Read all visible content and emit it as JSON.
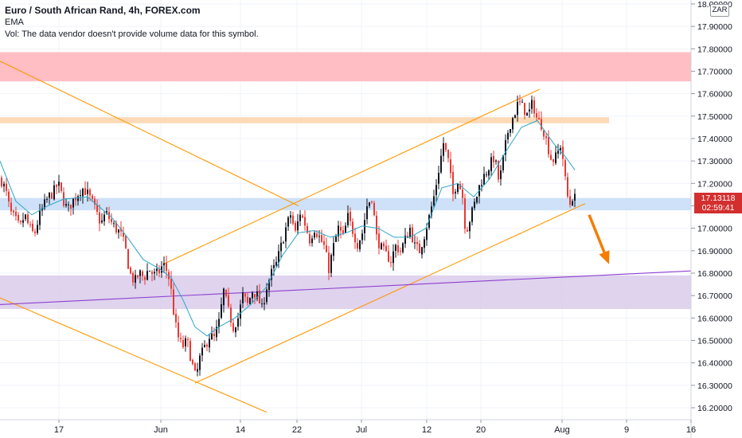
{
  "header": {
    "title": "Euro / South African Rand, 4h, FOREX.com",
    "indicator": "EMA",
    "volume_note": "Vol: The data vendor doesn't provide volume data for this symbol."
  },
  "price_axis": {
    "currency": "ZAR",
    "current_price": "17.13118",
    "countdown": "02:59:41"
  },
  "colors": {
    "up_candle": "#131722",
    "down_candle": "#e53935",
    "ema": "#2aa7c9",
    "trendline": "#ff9800",
    "support_line": "#8e3fcf",
    "forecast_arrow": "#f57c00",
    "zone_red": "#ffb3b8",
    "zone_orange": "#fcd3aa",
    "zone_blue": "#c5dcf7",
    "zone_purple": "#d9cbeb",
    "price_tag": "#d32f2f"
  },
  "chart_data": {
    "type": "candlestick",
    "symbol": "EURZAR",
    "timeframe": "4h",
    "ylim": [
      16.15,
      18.0
    ],
    "x_ticks": [
      "17",
      "Jun",
      "14",
      "22",
      "Jul",
      "12",
      "20",
      "Aug",
      "9",
      "16"
    ],
    "y_ticks": [
      "16.20000",
      "16.30000",
      "16.40000",
      "16.50000",
      "16.60000",
      "16.70000",
      "16.80000",
      "16.90000",
      "17.00000",
      "17.10000",
      "17.20000",
      "17.30000",
      "17.40000",
      "17.50000",
      "17.60000",
      "17.70000",
      "17.80000",
      "17.90000",
      "18.00000"
    ],
    "price_path": [
      {
        "x": 0,
        "y": 17.22
      },
      {
        "x": 6,
        "y": 17.17
      },
      {
        "x": 12,
        "y": 17.07
      },
      {
        "x": 18,
        "y": 17.04
      },
      {
        "x": 24,
        "y": 17.0
      },
      {
        "x": 30,
        "y": 17.06
      },
      {
        "x": 36,
        "y": 17.0
      },
      {
        "x": 42,
        "y": 16.97
      },
      {
        "x": 48,
        "y": 17.05
      },
      {
        "x": 54,
        "y": 17.1
      },
      {
        "x": 60,
        "y": 17.14
      },
      {
        "x": 66,
        "y": 17.16
      },
      {
        "x": 72,
        "y": 17.2
      },
      {
        "x": 78,
        "y": 17.13
      },
      {
        "x": 84,
        "y": 17.08
      },
      {
        "x": 90,
        "y": 17.12
      },
      {
        "x": 96,
        "y": 17.15
      },
      {
        "x": 102,
        "y": 17.18
      },
      {
        "x": 108,
        "y": 17.16
      },
      {
        "x": 114,
        "y": 17.12
      },
      {
        "x": 120,
        "y": 17.07
      },
      {
        "x": 126,
        "y": 17.02
      },
      {
        "x": 132,
        "y": 17.07
      },
      {
        "x": 138,
        "y": 17.03
      },
      {
        "x": 144,
        "y": 17.0
      },
      {
        "x": 150,
        "y": 16.98
      },
      {
        "x": 156,
        "y": 16.92
      },
      {
        "x": 162,
        "y": 16.8
      },
      {
        "x": 168,
        "y": 16.76
      },
      {
        "x": 174,
        "y": 16.8
      },
      {
        "x": 180,
        "y": 16.78
      },
      {
        "x": 186,
        "y": 16.82
      },
      {
        "x": 192,
        "y": 16.79
      },
      {
        "x": 198,
        "y": 16.8
      },
      {
        "x": 204,
        "y": 16.84
      },
      {
        "x": 210,
        "y": 16.8
      },
      {
        "x": 214,
        "y": 16.72
      },
      {
        "x": 218,
        "y": 16.6
      },
      {
        "x": 222,
        "y": 16.52
      },
      {
        "x": 228,
        "y": 16.47
      },
      {
        "x": 234,
        "y": 16.5
      },
      {
        "x": 240,
        "y": 16.4
      },
      {
        "x": 245,
        "y": 16.33
      },
      {
        "x": 250,
        "y": 16.42
      },
      {
        "x": 256,
        "y": 16.47
      },
      {
        "x": 262,
        "y": 16.52
      },
      {
        "x": 268,
        "y": 16.51
      },
      {
        "x": 274,
        "y": 16.58
      },
      {
        "x": 280,
        "y": 16.72
      },
      {
        "x": 286,
        "y": 16.63
      },
      {
        "x": 292,
        "y": 16.56
      },
      {
        "x": 298,
        "y": 16.6
      },
      {
        "x": 304,
        "y": 16.7
      },
      {
        "x": 310,
        "y": 16.66
      },
      {
        "x": 316,
        "y": 16.72
      },
      {
        "x": 322,
        "y": 16.7
      },
      {
        "x": 328,
        "y": 16.64
      },
      {
        "x": 334,
        "y": 16.74
      },
      {
        "x": 340,
        "y": 16.8
      },
      {
        "x": 346,
        "y": 16.84
      },
      {
        "x": 352,
        "y": 16.92
      },
      {
        "x": 358,
        "y": 17.0
      },
      {
        "x": 364,
        "y": 17.06
      },
      {
        "x": 370,
        "y": 16.98
      },
      {
        "x": 376,
        "y": 17.07
      },
      {
        "x": 382,
        "y": 17.02
      },
      {
        "x": 388,
        "y": 16.95
      },
      {
        "x": 394,
        "y": 17.0
      },
      {
        "x": 400,
        "y": 16.96
      },
      {
        "x": 406,
        "y": 16.92
      },
      {
        "x": 412,
        "y": 16.82
      },
      {
        "x": 418,
        "y": 16.92
      },
      {
        "x": 424,
        "y": 17.0
      },
      {
        "x": 430,
        "y": 16.96
      },
      {
        "x": 436,
        "y": 17.05
      },
      {
        "x": 442,
        "y": 16.99
      },
      {
        "x": 448,
        "y": 16.93
      },
      {
        "x": 454,
        "y": 16.98
      },
      {
        "x": 460,
        "y": 17.1
      },
      {
        "x": 466,
        "y": 17.14
      },
      {
        "x": 472,
        "y": 16.96
      },
      {
        "x": 478,
        "y": 16.91
      },
      {
        "x": 484,
        "y": 16.88
      },
      {
        "x": 490,
        "y": 16.86
      },
      {
        "x": 496,
        "y": 16.92
      },
      {
        "x": 502,
        "y": 16.9
      },
      {
        "x": 508,
        "y": 16.95
      },
      {
        "x": 514,
        "y": 17.0
      },
      {
        "x": 520,
        "y": 16.92
      },
      {
        "x": 526,
        "y": 16.9
      },
      {
        "x": 532,
        "y": 16.97
      },
      {
        "x": 538,
        "y": 17.05
      },
      {
        "x": 544,
        "y": 17.14
      },
      {
        "x": 550,
        "y": 17.26
      },
      {
        "x": 556,
        "y": 17.38
      },
      {
        "x": 562,
        "y": 17.3
      },
      {
        "x": 568,
        "y": 17.15
      },
      {
        "x": 574,
        "y": 17.22
      },
      {
        "x": 580,
        "y": 17.14
      },
      {
        "x": 584,
        "y": 16.98
      },
      {
        "x": 590,
        "y": 17.05
      },
      {
        "x": 596,
        "y": 17.12
      },
      {
        "x": 602,
        "y": 17.2
      },
      {
        "x": 608,
        "y": 17.24
      },
      {
        "x": 614,
        "y": 17.28
      },
      {
        "x": 620,
        "y": 17.32
      },
      {
        "x": 626,
        "y": 17.2
      },
      {
        "x": 632,
        "y": 17.33
      },
      {
        "x": 638,
        "y": 17.45
      },
      {
        "x": 644,
        "y": 17.5
      },
      {
        "x": 650,
        "y": 17.56
      },
      {
        "x": 656,
        "y": 17.54
      },
      {
        "x": 662,
        "y": 17.5
      },
      {
        "x": 668,
        "y": 17.56
      },
      {
        "x": 674,
        "y": 17.48
      },
      {
        "x": 680,
        "y": 17.46
      },
      {
        "x": 686,
        "y": 17.38
      },
      {
        "x": 692,
        "y": 17.3
      },
      {
        "x": 698,
        "y": 17.32
      },
      {
        "x": 704,
        "y": 17.38
      },
      {
        "x": 710,
        "y": 17.18
      },
      {
        "x": 714,
        "y": 17.1
      },
      {
        "x": 718,
        "y": 17.14
      },
      {
        "x": 722,
        "y": 17.13
      }
    ],
    "ema_path": [
      {
        "x": 0,
        "y": 17.3
      },
      {
        "x": 20,
        "y": 17.12
      },
      {
        "x": 40,
        "y": 17.06
      },
      {
        "x": 60,
        "y": 17.1
      },
      {
        "x": 80,
        "y": 17.13
      },
      {
        "x": 110,
        "y": 17.14
      },
      {
        "x": 140,
        "y": 17.05
      },
      {
        "x": 160,
        "y": 16.96
      },
      {
        "x": 180,
        "y": 16.86
      },
      {
        "x": 200,
        "y": 16.82
      },
      {
        "x": 215,
        "y": 16.78
      },
      {
        "x": 230,
        "y": 16.68
      },
      {
        "x": 245,
        "y": 16.56
      },
      {
        "x": 260,
        "y": 16.52
      },
      {
        "x": 275,
        "y": 16.56
      },
      {
        "x": 295,
        "y": 16.6
      },
      {
        "x": 315,
        "y": 16.66
      },
      {
        "x": 335,
        "y": 16.74
      },
      {
        "x": 355,
        "y": 16.88
      },
      {
        "x": 375,
        "y": 16.98
      },
      {
        "x": 395,
        "y": 16.99
      },
      {
        "x": 415,
        "y": 16.96
      },
      {
        "x": 435,
        "y": 16.98
      },
      {
        "x": 455,
        "y": 17.01
      },
      {
        "x": 475,
        "y": 17.0
      },
      {
        "x": 495,
        "y": 16.96
      },
      {
        "x": 515,
        "y": 16.96
      },
      {
        "x": 535,
        "y": 17.0
      },
      {
        "x": 555,
        "y": 17.18
      },
      {
        "x": 575,
        "y": 17.2
      },
      {
        "x": 595,
        "y": 17.14
      },
      {
        "x": 615,
        "y": 17.22
      },
      {
        "x": 635,
        "y": 17.34
      },
      {
        "x": 655,
        "y": 17.45
      },
      {
        "x": 675,
        "y": 17.48
      },
      {
        "x": 695,
        "y": 17.38
      },
      {
        "x": 710,
        "y": 17.32
      },
      {
        "x": 722,
        "y": 17.26
      }
    ],
    "zones": [
      {
        "color": "zone_red",
        "from": 17.655,
        "to": 17.785,
        "x_from": 0,
        "x_to": 868
      },
      {
        "color": "zone_orange",
        "from": 17.468,
        "to": 17.495,
        "x_from": 0,
        "x_to": 765
      },
      {
        "color": "zone_blue",
        "from": 17.08,
        "to": 17.135,
        "x_from": 0,
        "x_to": 868
      },
      {
        "color": "zone_purple",
        "from": 16.64,
        "to": 16.79,
        "x_from": 0,
        "x_to": 868
      }
    ],
    "trendlines": [
      {
        "color": "trendline",
        "from": {
          "x": 0,
          "y": 17.745
        },
        "to": {
          "x": 375,
          "y": 17.1
        }
      },
      {
        "color": "trendline",
        "from": {
          "x": 0,
          "y": 16.69
        },
        "to": {
          "x": 335,
          "y": 16.18
        }
      },
      {
        "color": "trendline",
        "from": {
          "x": 205,
          "y": 16.84
        },
        "to": {
          "x": 678,
          "y": 17.62
        }
      },
      {
        "color": "trendline",
        "from": {
          "x": 245,
          "y": 16.31
        },
        "to": {
          "x": 735,
          "y": 17.11
        }
      },
      {
        "color": "support_line",
        "from": {
          "x": 0,
          "y": 16.66
        },
        "to": {
          "x": 868,
          "y": 16.81
        }
      }
    ],
    "forecast_arrow": {
      "from": {
        "x": 740,
        "y": 17.06
      },
      "to": {
        "x": 765,
        "y": 16.84
      }
    }
  }
}
